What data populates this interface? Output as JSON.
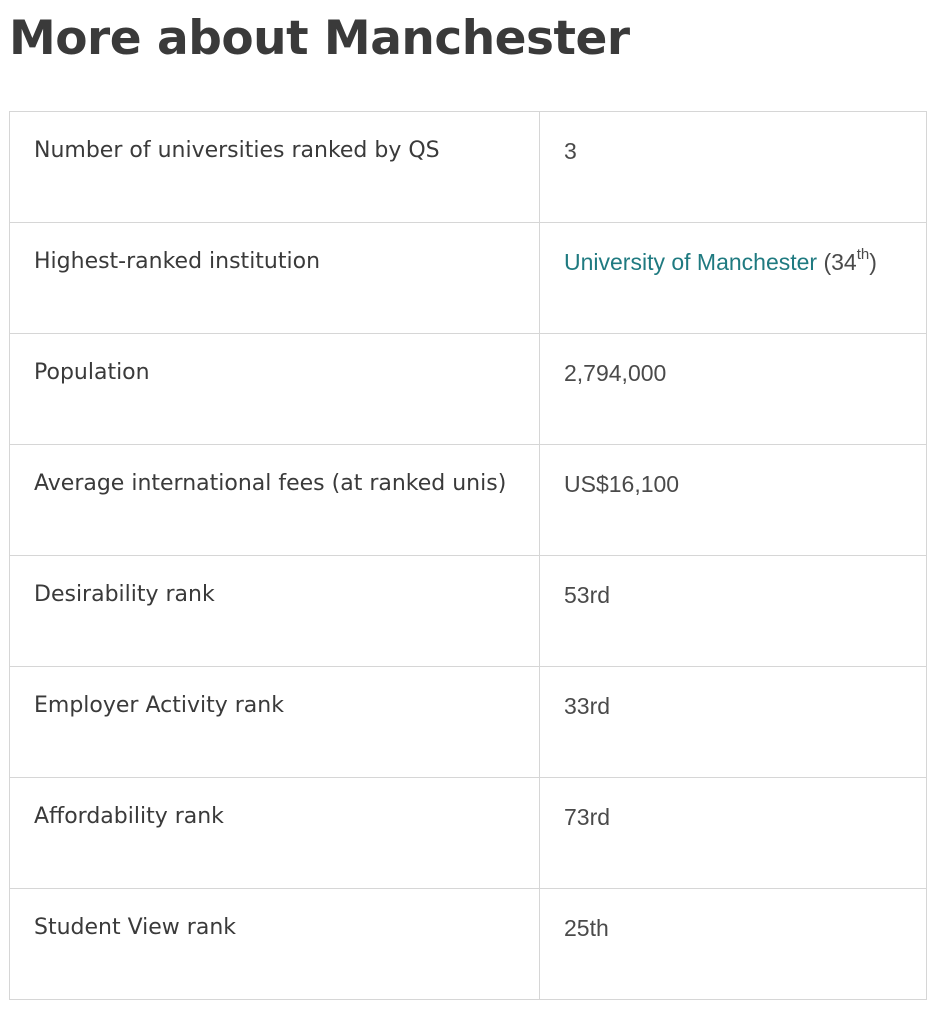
{
  "header": {
    "title": "More about Manchester"
  },
  "table": {
    "rows": [
      {
        "label": "Number of universities ranked by QS",
        "value": "3"
      },
      {
        "label": "Highest-ranked institution",
        "value_link": "University of Manchester",
        "value_prefix": " (34",
        "value_sup": "th",
        "value_suffix": ")"
      },
      {
        "label": "Population",
        "value": "2,794,000"
      },
      {
        "label": "Average international fees (at ranked unis)",
        "value": "US$16,100"
      },
      {
        "label": "Desirability rank",
        "value": "53rd"
      },
      {
        "label": "Employer Activity rank",
        "value": "33rd"
      },
      {
        "label": "Affordability rank",
        "value": "73rd"
      },
      {
        "label": "Student View rank",
        "value": "25th"
      }
    ]
  },
  "colors": {
    "link": "#1f7a80",
    "border": "#d6d6d6",
    "text": "#3a3a3a"
  }
}
